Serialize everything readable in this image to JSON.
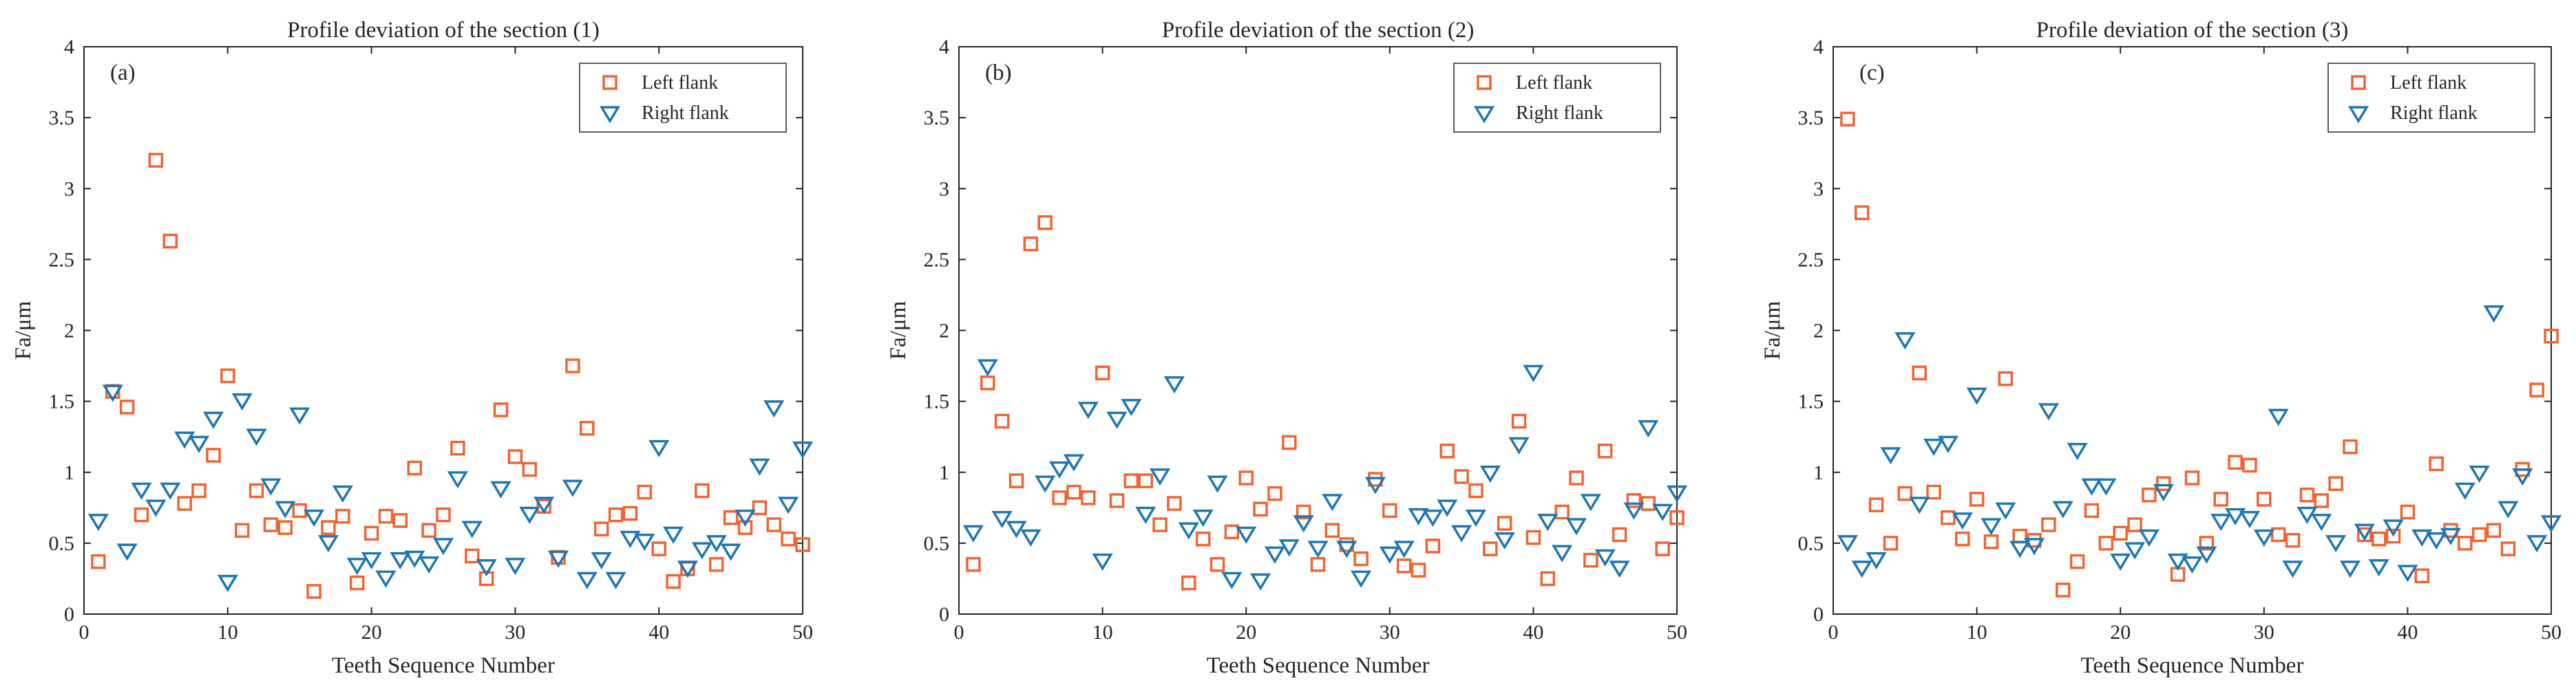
{
  "chart_data": [
    {
      "type": "scatter",
      "panel_label": "(a)",
      "title": "Profile deviation of the section (1)",
      "xlabel": "Teeth Sequence Number",
      "ylabel": "Fa/μm",
      "xlim": [
        0,
        50
      ],
      "ylim": [
        0,
        4
      ],
      "xticks": [
        "0",
        "10",
        "20",
        "30",
        "40",
        "50"
      ],
      "yticks": [
        "0",
        "0.5",
        "1",
        "1.5",
        "2",
        "2.5",
        "3",
        "3.5",
        "4"
      ],
      "grid": false,
      "legend_position": "top-right",
      "series": [
        {
          "name": "Left flank",
          "marker": "square",
          "color": "#F26430",
          "x": [
            1,
            2,
            3,
            4,
            5,
            6,
            7,
            8,
            9,
            10,
            11,
            12,
            13,
            14,
            15,
            16,
            17,
            18,
            19,
            20,
            21,
            22,
            23,
            24,
            25,
            26,
            27,
            28,
            29,
            30,
            31,
            32,
            33,
            34,
            35,
            36,
            37,
            38,
            39,
            40,
            41,
            42,
            43,
            44,
            45,
            46,
            47,
            48,
            49,
            50
          ],
          "values": [
            0.37,
            1.57,
            1.46,
            0.7,
            3.2,
            2.63,
            0.78,
            0.87,
            1.12,
            1.68,
            0.59,
            0.87,
            0.63,
            0.61,
            0.73,
            0.16,
            0.61,
            0.69,
            0.22,
            0.57,
            0.69,
            0.66,
            1.03,
            0.59,
            0.7,
            1.17,
            0.41,
            0.25,
            1.44,
            1.11,
            1.02,
            0.76,
            0.4,
            1.75,
            1.31,
            0.6,
            0.7,
            0.71,
            0.86,
            0.46,
            0.23,
            0.32,
            0.87,
            0.35,
            0.68,
            0.61,
            0.75,
            0.63,
            0.53,
            0.49
          ]
        },
        {
          "name": "Right flank",
          "marker": "triangle-down",
          "color": "#1F77B4",
          "x": [
            1,
            2,
            3,
            4,
            5,
            6,
            7,
            8,
            9,
            10,
            11,
            12,
            13,
            14,
            15,
            16,
            17,
            18,
            19,
            20,
            21,
            22,
            23,
            24,
            25,
            26,
            27,
            28,
            29,
            30,
            31,
            32,
            33,
            34,
            35,
            36,
            37,
            38,
            39,
            40,
            41,
            42,
            43,
            44,
            45,
            46,
            47,
            48,
            49,
            50
          ],
          "values": [
            0.66,
            1.57,
            0.45,
            0.88,
            0.76,
            0.88,
            1.24,
            1.21,
            1.38,
            0.23,
            1.51,
            1.26,
            0.91,
            0.75,
            1.41,
            0.69,
            0.51,
            0.86,
            0.35,
            0.39,
            0.26,
            0.39,
            0.4,
            0.36,
            0.49,
            0.96,
            0.61,
            0.34,
            0.89,
            0.35,
            0.71,
            0.78,
            0.4,
            0.9,
            0.25,
            0.39,
            0.25,
            0.54,
            0.52,
            1.18,
            0.57,
            0.33,
            0.46,
            0.51,
            0.45,
            0.69,
            1.05,
            1.46,
            0.78,
            1.17
          ]
        }
      ]
    },
    {
      "type": "scatter",
      "panel_label": "(b)",
      "title": "Profile deviation of the section (2)",
      "xlabel": "Teeth Sequence Number",
      "ylabel": "Fa/μm",
      "xlim": [
        0,
        50
      ],
      "ylim": [
        0,
        4
      ],
      "xticks": [
        "0",
        "10",
        "20",
        "30",
        "40",
        "50"
      ],
      "yticks": [
        "0",
        "0.5",
        "1",
        "1.5",
        "2",
        "2.5",
        "3",
        "3.5",
        "4"
      ],
      "grid": false,
      "legend_position": "top-right",
      "series": [
        {
          "name": "Left flank",
          "marker": "square",
          "color": "#F26430",
          "x": [
            1,
            2,
            3,
            4,
            5,
            6,
            7,
            8,
            9,
            10,
            11,
            12,
            13,
            14,
            15,
            16,
            17,
            18,
            19,
            20,
            21,
            22,
            23,
            24,
            25,
            26,
            27,
            28,
            29,
            30,
            31,
            32,
            33,
            34,
            35,
            36,
            37,
            38,
            39,
            40,
            41,
            42,
            43,
            44,
            45,
            46,
            47,
            48,
            49,
            50
          ],
          "values": [
            0.35,
            1.63,
            1.36,
            0.94,
            2.61,
            2.76,
            0.82,
            0.86,
            0.82,
            1.7,
            0.8,
            0.94,
            0.94,
            0.63,
            0.78,
            0.22,
            0.53,
            0.35,
            0.58,
            0.96,
            0.74,
            0.85,
            1.21,
            0.72,
            0.35,
            0.59,
            0.49,
            0.39,
            0.95,
            0.73,
            0.34,
            0.31,
            0.48,
            1.15,
            0.97,
            0.87,
            0.46,
            0.64,
            1.36,
            0.54,
            0.25,
            0.72,
            0.96,
            0.38,
            1.15,
            0.56,
            0.8,
            0.78,
            0.46,
            0.68
          ]
        },
        {
          "name": "Right flank",
          "marker": "triangle-down",
          "color": "#1F77B4",
          "x": [
            1,
            2,
            3,
            4,
            5,
            6,
            7,
            8,
            9,
            10,
            11,
            12,
            13,
            14,
            15,
            16,
            17,
            18,
            19,
            20,
            21,
            22,
            23,
            24,
            25,
            26,
            27,
            28,
            29,
            30,
            31,
            32,
            33,
            34,
            35,
            36,
            37,
            38,
            39,
            40,
            41,
            42,
            43,
            44,
            45,
            46,
            47,
            48,
            49,
            50
          ],
          "values": [
            0.58,
            1.75,
            0.68,
            0.61,
            0.55,
            0.93,
            1.03,
            1.08,
            1.45,
            0.38,
            1.38,
            1.47,
            0.71,
            0.98,
            1.63,
            0.6,
            0.69,
            0.93,
            0.25,
            0.57,
            0.24,
            0.43,
            0.48,
            0.65,
            0.47,
            0.8,
            0.47,
            0.26,
            0.92,
            0.43,
            0.47,
            0.7,
            0.69,
            0.76,
            0.58,
            0.69,
            1.0,
            0.53,
            1.2,
            1.71,
            0.66,
            0.44,
            0.63,
            0.8,
            0.41,
            0.33,
            0.74,
            1.32,
            0.73,
            0.86
          ]
        }
      ]
    },
    {
      "type": "scatter",
      "panel_label": "(c)",
      "title": "Profile deviation of the section (3)",
      "xlabel": "Teeth Sequence Number",
      "ylabel": "Fa/μm",
      "xlim": [
        0,
        50
      ],
      "ylim": [
        0,
        4
      ],
      "xticks": [
        "0",
        "10",
        "20",
        "30",
        "40",
        "50"
      ],
      "yticks": [
        "0",
        "0.5",
        "1",
        "1.5",
        "2",
        "2.5",
        "3",
        "3.5",
        "4"
      ],
      "grid": false,
      "legend_position": "top-right",
      "series": [
        {
          "name": "Left flank",
          "marker": "square",
          "color": "#F26430",
          "x": [
            1,
            2,
            3,
            4,
            5,
            6,
            7,
            8,
            9,
            10,
            11,
            12,
            13,
            14,
            15,
            16,
            17,
            18,
            19,
            20,
            21,
            22,
            23,
            24,
            25,
            26,
            27,
            28,
            29,
            30,
            31,
            32,
            33,
            34,
            35,
            36,
            37,
            38,
            39,
            40,
            41,
            42,
            43,
            44,
            45,
            46,
            47,
            48,
            49,
            50
          ],
          "values": [
            3.49,
            2.83,
            0.77,
            0.5,
            0.85,
            1.7,
            0.86,
            0.68,
            0.53,
            0.81,
            0.51,
            1.66,
            0.55,
            0.52,
            0.63,
            0.17,
            0.37,
            0.73,
            0.5,
            0.57,
            0.63,
            0.84,
            0.92,
            0.28,
            0.96,
            0.5,
            0.81,
            1.07,
            1.05,
            0.81,
            0.56,
            0.52,
            0.84,
            0.8,
            0.92,
            1.18,
            0.56,
            0.53,
            0.55,
            0.72,
            0.27,
            1.06,
            0.59,
            0.5,
            0.56,
            0.59,
            0.46,
            1.02,
            1.58,
            1.96
          ]
        },
        {
          "name": "Right flank",
          "marker": "triangle-down",
          "color": "#1F77B4",
          "x": [
            1,
            2,
            3,
            4,
            5,
            6,
            7,
            8,
            9,
            10,
            11,
            12,
            13,
            14,
            15,
            16,
            17,
            18,
            19,
            20,
            21,
            22,
            23,
            24,
            25,
            26,
            27,
            28,
            29,
            30,
            31,
            32,
            33,
            34,
            35,
            36,
            37,
            38,
            39,
            40,
            41,
            42,
            43,
            44,
            45,
            46,
            47,
            48,
            49,
            50
          ],
          "values": [
            0.51,
            0.33,
            0.39,
            1.13,
            1.94,
            0.78,
            1.19,
            1.21,
            0.67,
            1.55,
            0.63,
            0.74,
            0.47,
            0.49,
            1.44,
            0.75,
            1.16,
            0.91,
            0.91,
            0.38,
            0.46,
            0.55,
            0.87,
            0.38,
            0.36,
            0.43,
            0.66,
            0.7,
            0.68,
            0.55,
            1.4,
            0.33,
            0.71,
            0.66,
            0.51,
            0.33,
            0.59,
            0.34,
            0.62,
            0.3,
            0.55,
            0.53,
            0.56,
            0.88,
            1.0,
            2.13,
            0.75,
            0.98,
            0.51,
            0.65
          ]
        }
      ]
    }
  ]
}
